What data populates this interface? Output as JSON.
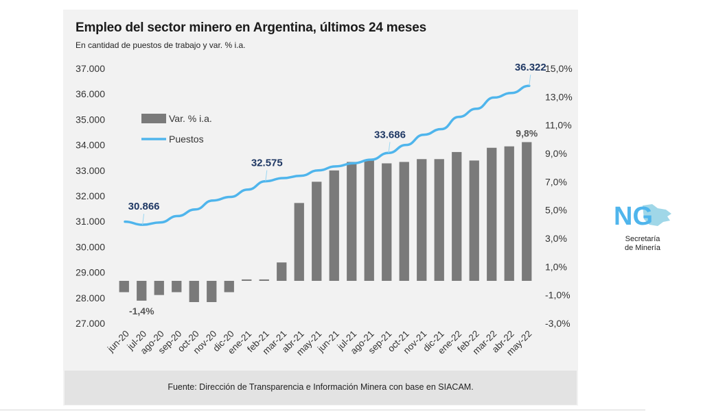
{
  "chart_data": {
    "type": "bar+line",
    "title": "Empleo del sector minero en Argentina, últimos 24 meses",
    "subtitle": "En cantidad de puestos de trabajo y var. % i.a.",
    "categories": [
      "jun-20",
      "jul-20",
      "ago-20",
      "sep-20",
      "oct-20",
      "nov-20",
      "dic-20",
      "ene-21",
      "feb-21",
      "mar-21",
      "abr-21",
      "may-21",
      "jun-21",
      "jul-21",
      "ago-21",
      "sep-21",
      "oct-21",
      "nov-21",
      "dic-21",
      "ene-22",
      "feb-22",
      "mar-22",
      "abr-22",
      "may-22"
    ],
    "series": [
      {
        "name": "Var. % i.a.",
        "type": "bar",
        "axis": "right",
        "color": "#7a7a7a",
        "values": [
          -0.8,
          -1.4,
          -1.0,
          -0.8,
          -1.5,
          -1.5,
          -0.8,
          0.1,
          0.1,
          1.3,
          5.5,
          7.0,
          7.8,
          8.4,
          8.5,
          8.3,
          8.4,
          8.6,
          8.6,
          9.1,
          8.5,
          9.4,
          9.5,
          9.8
        ]
      },
      {
        "name": "Puestos",
        "type": "line",
        "axis": "left",
        "color": "#4fb5ec",
        "values": [
          30990,
          30866,
          30960,
          31210,
          31470,
          31820,
          31960,
          32250,
          32575,
          32700,
          32790,
          33000,
          33160,
          33280,
          33420,
          33686,
          34000,
          34400,
          34620,
          35100,
          35420,
          35860,
          36040,
          36322
        ]
      }
    ],
    "left_axis": {
      "min": 27000,
      "max": 37000,
      "ticks": [
        "37.000",
        "36.000",
        "35.000",
        "34.000",
        "33.000",
        "32.000",
        "31.000",
        "30.000",
        "29.000",
        "28.000",
        "27.000"
      ]
    },
    "right_axis": {
      "min": -3,
      "max": 15,
      "ticks": [
        "15,0%",
        "13,0%",
        "11,0%",
        "9,0%",
        "7,0%",
        "5,0%",
        "3,0%",
        "1,0%",
        "-1,0%",
        "-3,0%"
      ]
    },
    "data_labels": [
      {
        "series": "Puestos",
        "index": 1,
        "text": "30.866",
        "color": "#1f3864"
      },
      {
        "series": "Puestos",
        "index": 8,
        "text": "32.575",
        "color": "#1f3864"
      },
      {
        "series": "Puestos",
        "index": 15,
        "text": "33.686",
        "color": "#1f3864"
      },
      {
        "series": "Puestos",
        "index": 23,
        "text": "36.322",
        "color": "#1f3864"
      },
      {
        "series": "Var. % i.a.",
        "index": 1,
        "text": "-1,4%",
        "color": "#555555"
      },
      {
        "series": "Var. % i.a.",
        "index": 23,
        "text": "9,8%",
        "color": "#555555"
      }
    ],
    "legend": {
      "placement": "top-left",
      "items": [
        "Var. % i.a.",
        "Puestos"
      ]
    },
    "grid": false
  },
  "source": "Fuente: Dirección de Transparencia e Información Minera con base en SIACAM.",
  "logo": {
    "mark": "NG",
    "line1": "Secretaría",
    "line2": "de Minería"
  }
}
